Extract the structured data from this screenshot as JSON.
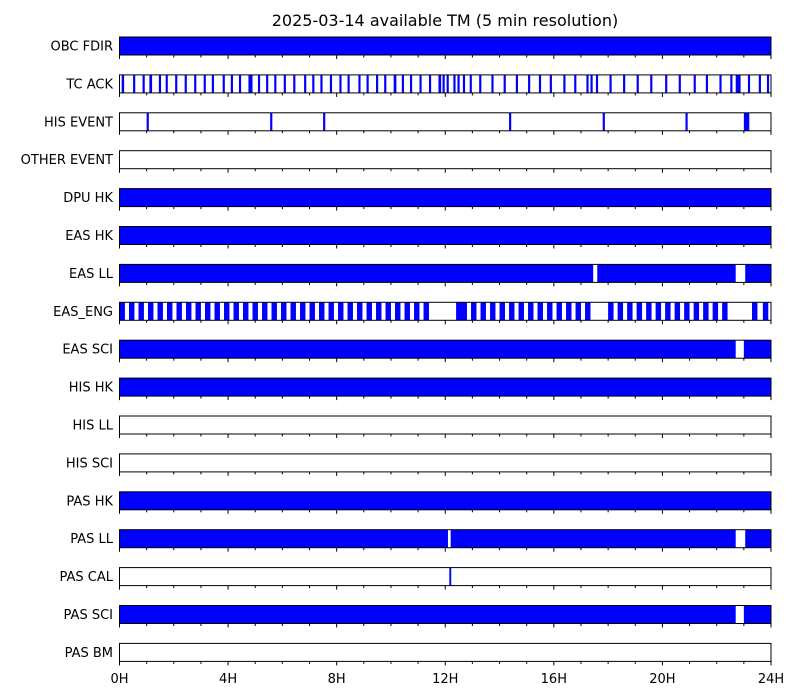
{
  "chart_data": {
    "type": "timeline",
    "title": "2025-03-14 available TM (5 min resolution)",
    "xlabel": "",
    "ylabel": "",
    "xlim": [
      0,
      24
    ],
    "x_unit": "hour",
    "x_ticks": [
      {
        "value": 0,
        "label": "0H"
      },
      {
        "value": 4,
        "label": "4H"
      },
      {
        "value": 8,
        "label": "8H"
      },
      {
        "value": 12,
        "label": "12H"
      },
      {
        "value": 16,
        "label": "16H"
      },
      {
        "value": 20,
        "label": "20H"
      },
      {
        "value": 24,
        "label": "24H"
      }
    ],
    "minor_tick_step_hours": 1,
    "available_color": "#0000ff",
    "frame_color": "#000000",
    "rows": [
      {
        "name": "OBC FDIR",
        "segments": [
          [
            0,
            24
          ]
        ]
      },
      {
        "name": "TC ACK",
        "segments": [
          [
            0.08,
            0.17
          ],
          [
            0.5,
            0.58
          ],
          [
            0.85,
            0.93
          ],
          [
            1.1,
            1.2
          ],
          [
            1.45,
            1.53
          ],
          [
            1.7,
            1.78
          ],
          [
            2.05,
            2.13
          ],
          [
            2.4,
            2.48
          ],
          [
            2.75,
            2.83
          ],
          [
            3.1,
            3.18
          ],
          [
            3.4,
            3.48
          ],
          [
            3.8,
            3.88
          ],
          [
            4.1,
            4.18
          ],
          [
            4.4,
            4.48
          ],
          [
            4.75,
            4.9
          ],
          [
            5.1,
            5.18
          ],
          [
            5.4,
            5.48
          ],
          [
            5.7,
            5.78
          ],
          [
            6.05,
            6.13
          ],
          [
            6.4,
            6.48
          ],
          [
            6.8,
            6.88
          ],
          [
            7.1,
            7.18
          ],
          [
            7.4,
            7.48
          ],
          [
            7.75,
            7.83
          ],
          [
            8.1,
            8.18
          ],
          [
            8.4,
            8.48
          ],
          [
            8.8,
            8.88
          ],
          [
            9.1,
            9.18
          ],
          [
            9.45,
            9.53
          ],
          [
            9.75,
            9.83
          ],
          [
            10.1,
            10.2
          ],
          [
            10.4,
            10.48
          ],
          [
            10.7,
            10.78
          ],
          [
            11.05,
            11.13
          ],
          [
            11.4,
            11.48
          ],
          [
            11.75,
            11.85
          ],
          [
            11.9,
            11.98
          ],
          [
            12.05,
            12.13
          ],
          [
            12.3,
            12.38
          ],
          [
            12.45,
            12.53
          ],
          [
            12.65,
            12.73
          ],
          [
            12.9,
            12.98
          ],
          [
            13.25,
            13.33
          ],
          [
            13.7,
            13.78
          ],
          [
            14.15,
            14.23
          ],
          [
            14.6,
            14.68
          ],
          [
            15.05,
            15.13
          ],
          [
            15.45,
            15.53
          ],
          [
            15.85,
            15.93
          ],
          [
            16.35,
            16.43
          ],
          [
            16.75,
            16.83
          ],
          [
            17.2,
            17.28
          ],
          [
            17.35,
            17.43
          ],
          [
            17.55,
            17.63
          ],
          [
            18.05,
            18.13
          ],
          [
            18.55,
            18.63
          ],
          [
            19.05,
            19.13
          ],
          [
            19.55,
            19.63
          ],
          [
            20.1,
            20.18
          ],
          [
            20.6,
            20.68
          ],
          [
            21.15,
            21.23
          ],
          [
            21.6,
            21.68
          ],
          [
            22.1,
            22.18
          ],
          [
            22.5,
            22.58
          ],
          [
            22.7,
            22.88
          ],
          [
            23.15,
            23.23
          ],
          [
            23.55,
            23.63
          ],
          [
            23.85,
            23.93
          ]
        ]
      },
      {
        "name": "HIS EVENT",
        "segments": [
          [
            1.0,
            1.08
          ],
          [
            5.55,
            5.63
          ],
          [
            7.5,
            7.58
          ],
          [
            14.35,
            14.43
          ],
          [
            17.8,
            17.88
          ],
          [
            20.85,
            20.93
          ],
          [
            23.0,
            23.2
          ]
        ]
      },
      {
        "name": "OTHER EVENT",
        "segments": []
      },
      {
        "name": "DPU HK",
        "segments": [
          [
            0,
            24
          ]
        ]
      },
      {
        "name": "EAS HK",
        "segments": [
          [
            0,
            24
          ]
        ]
      },
      {
        "name": "EAS LL",
        "segments": [
          [
            0,
            17.45
          ],
          [
            17.6,
            22.7
          ],
          [
            23.05,
            24
          ]
        ]
      },
      {
        "name": "EAS_ENG",
        "segments": [
          [
            0,
            0.2
          ],
          [
            0.35,
            0.55
          ],
          [
            0.7,
            0.9
          ],
          [
            1.05,
            1.25
          ],
          [
            1.4,
            1.6
          ],
          [
            1.75,
            1.95
          ],
          [
            2.1,
            2.3
          ],
          [
            2.45,
            2.65
          ],
          [
            2.8,
            3.0
          ],
          [
            3.15,
            3.35
          ],
          [
            3.5,
            3.7
          ],
          [
            3.85,
            4.05
          ],
          [
            4.2,
            4.4
          ],
          [
            4.55,
            4.75
          ],
          [
            4.9,
            5.1
          ],
          [
            5.25,
            5.45
          ],
          [
            5.6,
            5.8
          ],
          [
            5.95,
            6.15
          ],
          [
            6.3,
            6.5
          ],
          [
            6.65,
            6.85
          ],
          [
            7.0,
            7.2
          ],
          [
            7.35,
            7.55
          ],
          [
            7.7,
            7.9
          ],
          [
            8.05,
            8.25
          ],
          [
            8.4,
            8.6
          ],
          [
            8.75,
            8.95
          ],
          [
            9.1,
            9.3
          ],
          [
            9.45,
            9.65
          ],
          [
            9.8,
            10.0
          ],
          [
            10.15,
            10.35
          ],
          [
            10.5,
            10.7
          ],
          [
            10.85,
            11.05
          ],
          [
            11.2,
            11.4
          ],
          [
            12.4,
            12.8
          ],
          [
            12.95,
            13.15
          ],
          [
            13.3,
            13.5
          ],
          [
            13.65,
            13.85
          ],
          [
            14.0,
            14.2
          ],
          [
            14.35,
            14.55
          ],
          [
            14.7,
            14.9
          ],
          [
            15.05,
            15.25
          ],
          [
            15.4,
            15.6
          ],
          [
            15.75,
            15.95
          ],
          [
            16.1,
            16.3
          ],
          [
            16.45,
            16.65
          ],
          [
            16.8,
            17.0
          ],
          [
            17.15,
            17.35
          ],
          [
            18.0,
            18.2
          ],
          [
            18.35,
            18.55
          ],
          [
            18.7,
            18.9
          ],
          [
            19.05,
            19.25
          ],
          [
            19.4,
            19.6
          ],
          [
            19.75,
            19.95
          ],
          [
            20.1,
            20.3
          ],
          [
            20.45,
            20.65
          ],
          [
            20.8,
            21.0
          ],
          [
            21.15,
            21.35
          ],
          [
            21.5,
            21.7
          ],
          [
            21.85,
            22.05
          ],
          [
            22.2,
            22.4
          ],
          [
            23.3,
            23.5
          ],
          [
            23.7,
            23.9
          ]
        ]
      },
      {
        "name": "EAS SCI",
        "segments": [
          [
            0,
            22.7
          ],
          [
            23.0,
            24
          ]
        ]
      },
      {
        "name": "HIS HK",
        "segments": [
          [
            0,
            24
          ]
        ]
      },
      {
        "name": "HIS LL",
        "segments": []
      },
      {
        "name": "HIS SCI",
        "segments": []
      },
      {
        "name": "PAS HK",
        "segments": [
          [
            0,
            24
          ]
        ]
      },
      {
        "name": "PAS LL",
        "segments": [
          [
            0,
            12.1
          ],
          [
            12.2,
            22.7
          ],
          [
            23.05,
            24
          ]
        ]
      },
      {
        "name": "PAS CAL",
        "segments": [
          [
            12.15,
            12.22
          ]
        ]
      },
      {
        "name": "PAS SCI",
        "segments": [
          [
            0,
            22.7
          ],
          [
            23.0,
            24
          ]
        ]
      },
      {
        "name": "PAS BM",
        "segments": []
      }
    ]
  }
}
